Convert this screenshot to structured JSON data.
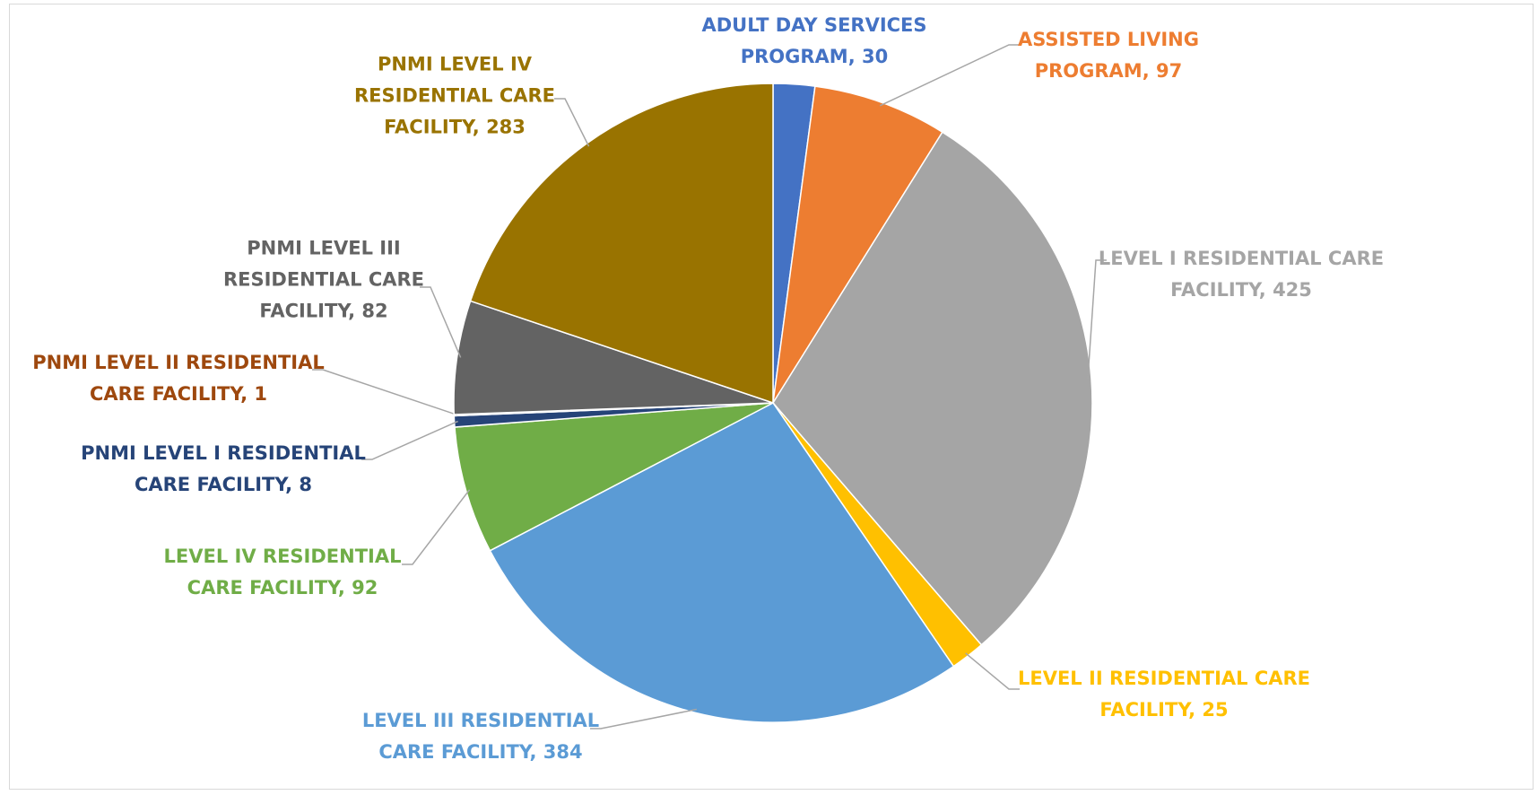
{
  "chart_data": {
    "type": "pie",
    "categories": [
      "ADULT DAY SERVICES PROGRAM",
      "ASSISTED LIVING PROGRAM",
      "LEVEL I RESIDENTIAL CARE FACILITY",
      "LEVEL II RESIDENTIAL CARE FACILITY",
      "LEVEL III RESIDENTIAL CARE FACILITY",
      "LEVEL IV RESIDENTIAL CARE FACILITY",
      "PNMI LEVEL I RESIDENTIAL CARE FACILITY",
      "PNMI LEVEL II RESIDENTIAL CARE FACILITY",
      "PNMI LEVEL III RESIDENTIAL CARE FACILITY",
      "PNMI LEVEL IV RESIDENTIAL CARE FACILITY"
    ],
    "values": [
      30,
      97,
      425,
      25,
      384,
      92,
      8,
      1,
      82,
      283
    ],
    "colors": [
      "#4472c4",
      "#ed7d31",
      "#a5a5a5",
      "#ffc000",
      "#5b9bd5",
      "#70ad47",
      "#264478",
      "#9e480e",
      "#636363",
      "#997300"
    ]
  }
}
